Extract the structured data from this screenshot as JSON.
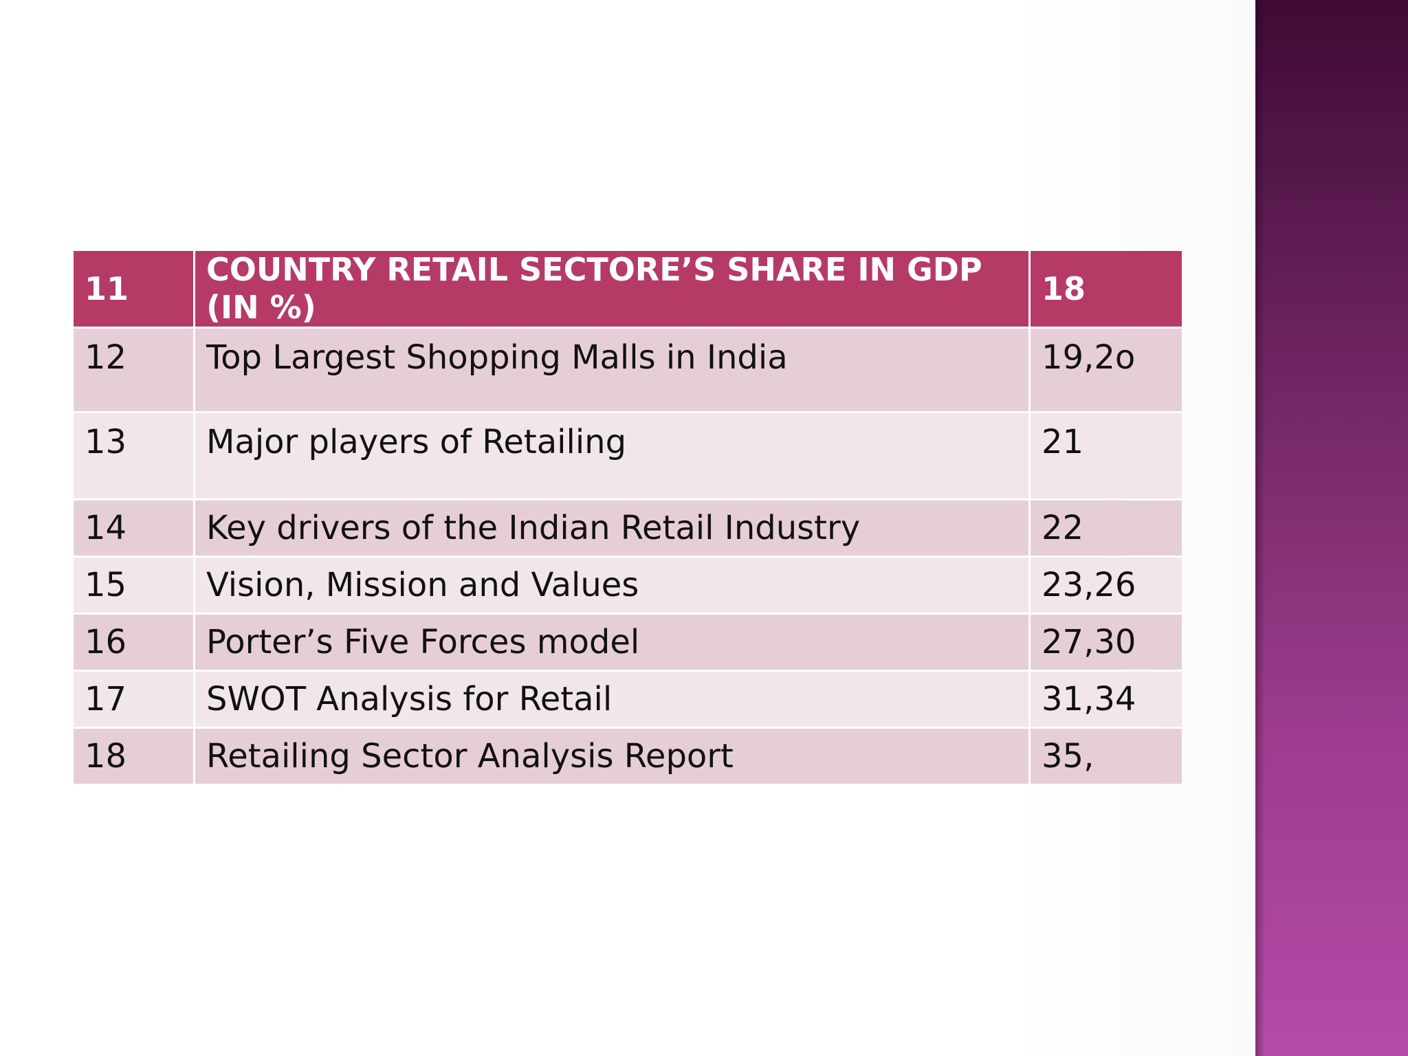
{
  "toc": {
    "header": {
      "num": "11",
      "title": "COUNTRY RETAIL SECTORE’S SHARE IN GDP (IN %)",
      "pages": "18"
    },
    "rows": [
      {
        "num": "12",
        "title": "Top  Largest Shopping Malls in India",
        "pages": "19,2o"
      },
      {
        "num": "13",
        "title": "Major players of Retailing",
        "pages": "21"
      },
      {
        "num": "14",
        "title": "Key drivers of the Indian Retail Industry",
        "pages": "22"
      },
      {
        "num": "15",
        "title": "Vision, Mission and Values",
        "pages": "23,26"
      },
      {
        "num": "16",
        "title": "Porter’s Five Forces model",
        "pages": "27,30"
      },
      {
        "num": "17",
        "title": "SWOT Analysis for Retail",
        "pages": "31,34"
      },
      {
        "num": "18",
        "title": "Retailing Sector Analysis Report",
        "pages": "35,"
      }
    ]
  },
  "colors": {
    "header_bg": "#b53b66",
    "row_dark": "#e6ced8",
    "row_light": "#f1e6eb",
    "side_band_top": "#3f0a35",
    "side_band_bottom": "#b34ba8"
  }
}
